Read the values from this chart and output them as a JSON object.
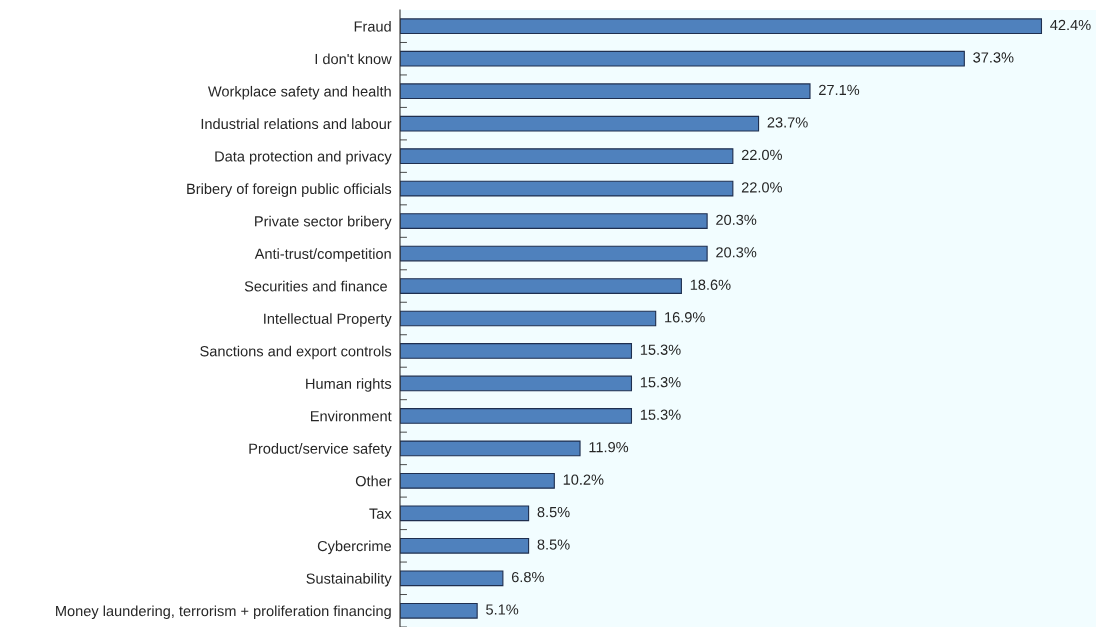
{
  "chart_data": {
    "type": "bar",
    "orientation": "horizontal",
    "color": "#4f81bd",
    "value_labels": [
      "42.4%",
      "37.3%",
      "27.1%",
      "23.7%",
      "22.0%",
      "22.0%",
      "20.3%",
      "20.3%",
      "18.6%",
      "16.9%",
      "15.3%",
      "15.3%",
      "15.3%",
      "11.9%",
      "10.2%",
      "8.5%",
      "8.5%",
      "6.8%",
      "5.1%"
    ],
    "categories": [
      "Fraud",
      "I don't know",
      "Workplace safety and health",
      "Industrial relations and labour",
      "Data protection and privacy",
      "Bribery of foreign public officials",
      "Private sector bribery",
      "Anti-trust/competition",
      "Securities and finance ",
      "Intellectual Property",
      "Sanctions and export controls",
      "Human rights",
      "Environment",
      "Product/service safety",
      "Other",
      "Tax",
      "Cybercrime",
      "Sustainability",
      "Money laundering, terrorism + proliferation financing"
    ],
    "values": [
      42.4,
      37.3,
      27.1,
      23.7,
      22.0,
      22.0,
      20.3,
      20.3,
      18.6,
      16.9,
      15.3,
      15.3,
      15.3,
      11.9,
      10.2,
      8.5,
      8.5,
      6.8,
      5.1
    ],
    "grid": false,
    "legend": false
  }
}
